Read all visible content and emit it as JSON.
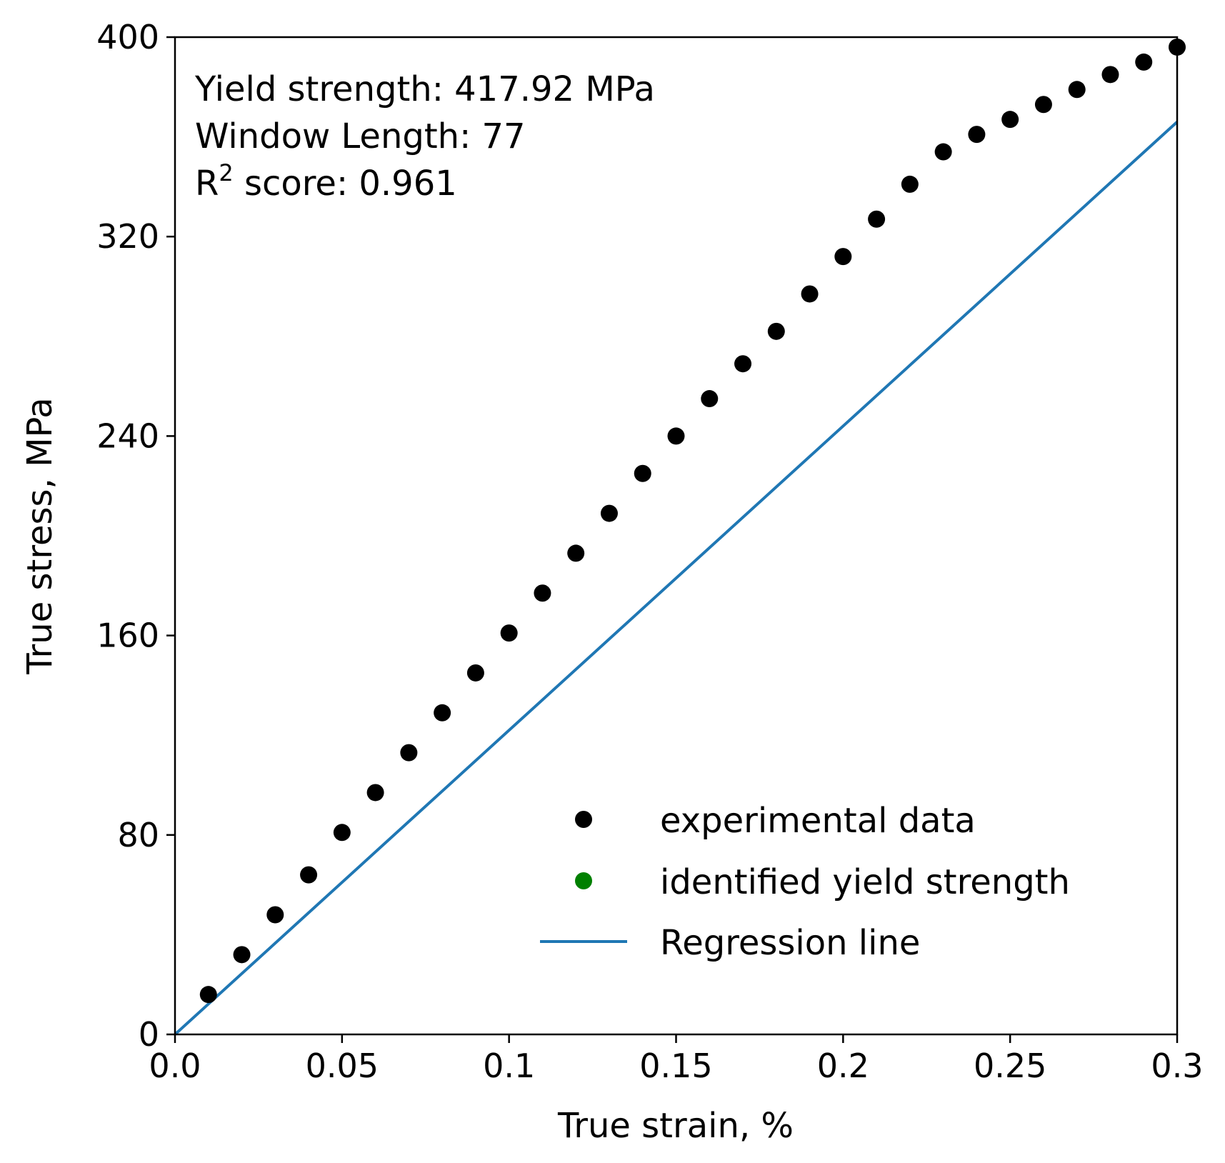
{
  "chart_data": {
    "type": "scatter",
    "xlabel": "True strain, %",
    "ylabel": "True stress, MPa",
    "xlim": [
      0,
      0.3
    ],
    "ylim": [
      0,
      400
    ],
    "xticks": [
      0,
      0.05,
      0.1,
      0.15,
      0.2,
      0.25,
      0.3
    ],
    "xtick_labels": [
      "0.0",
      "0.05",
      "0.1",
      "0.15",
      "0.2",
      "0.25",
      "0.3"
    ],
    "yticks": [
      0,
      80,
      160,
      240,
      320,
      400
    ],
    "ytick_labels": [
      "0",
      "80",
      "160",
      "240",
      "320",
      "400"
    ],
    "grid": false,
    "annotations": {
      "yield_strength": "Yield strength: 417.92 MPa",
      "window_length": "Window Length: 77",
      "r2_prefix": "R",
      "r2_sup": "2",
      "r2_rest": " score: 0.961"
    },
    "legend": {
      "position": "lower-right",
      "entries": [
        {
          "label": "experimental data",
          "marker": "dot",
          "color": "#000000"
        },
        {
          "label": "identified yield strength",
          "marker": "dot",
          "color": "#008000"
        },
        {
          "label": "Regression line",
          "marker": "line",
          "color": "#1f77b4"
        }
      ]
    },
    "series": [
      {
        "name": "experimental data",
        "kind": "scatter",
        "color": "#000000",
        "x": [
          0.01,
          0.02,
          0.03,
          0.04,
          0.05,
          0.06,
          0.07,
          0.08,
          0.09,
          0.1,
          0.11,
          0.12,
          0.13,
          0.14,
          0.15,
          0.16,
          0.17,
          0.18,
          0.19,
          0.2,
          0.21,
          0.22,
          0.23,
          0.24,
          0.25,
          0.26,
          0.27,
          0.28,
          0.29,
          0.3
        ],
        "y": [
          16,
          32,
          48,
          64,
          81,
          97,
          113,
          129,
          145,
          161,
          177,
          193,
          209,
          225,
          240,
          255,
          269,
          282,
          297,
          312,
          327,
          341,
          354,
          361,
          367,
          373,
          379,
          385,
          390,
          396
        ]
      },
      {
        "name": "Regression line",
        "kind": "line",
        "color": "#1f77b4",
        "x": [
          0,
          0.3
        ],
        "y": [
          0,
          366
        ]
      }
    ]
  }
}
